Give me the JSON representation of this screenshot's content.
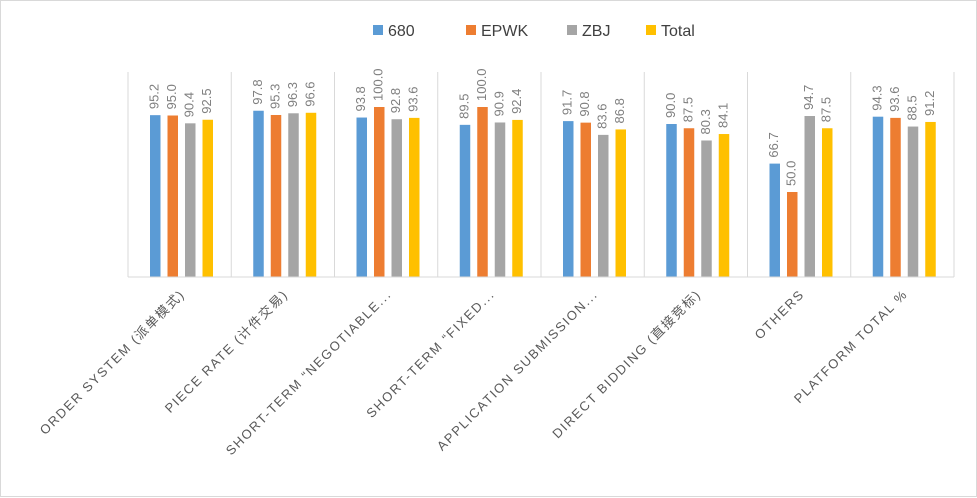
{
  "chart_data": {
    "type": "bar",
    "categories": [
      "ORDER SYSTEM (派单模式)",
      "PIECE RATE (计件交易)",
      "SHORT-TERM “NEGOTIABLE...",
      "SHORT-TERM “FIXED...",
      "APPLICATION SUBMISSION...",
      "DIRECT BIDDING (直接竞标)",
      "OTHERS",
      "PLATFORM TOTAL %"
    ],
    "series": [
      {
        "name": "680",
        "color": "#5b9bd5",
        "values": [
          95.2,
          97.8,
          93.8,
          89.5,
          91.7,
          90.0,
          66.7,
          94.3
        ]
      },
      {
        "name": "EPWK",
        "color": "#ed7d31",
        "values": [
          95.0,
          95.3,
          100.0,
          100.0,
          90.8,
          87.5,
          50.0,
          93.6
        ]
      },
      {
        "name": "ZBJ",
        "color": "#a5a5a5",
        "values": [
          90.4,
          96.3,
          92.8,
          90.9,
          83.6,
          80.3,
          94.7,
          88.5
        ]
      },
      {
        "name": "Total",
        "color": "#ffc000",
        "values": [
          92.5,
          96.6,
          93.6,
          92.4,
          86.8,
          84.1,
          87.5,
          91.2
        ]
      }
    ],
    "value_labels": [
      [
        "95.2",
        "97.8",
        "93.8",
        "89.5",
        "91.7",
        "90.0",
        "66.7",
        "94.3"
      ],
      [
        "95.0",
        "95.3",
        "100.0",
        "100.0",
        "90.8",
        "87.5",
        "50.0",
        "93.6"
      ],
      [
        "90.4",
        "96.3",
        "92.8",
        "90.9",
        "83.6",
        "80.3",
        "94.7",
        "88.5"
      ],
      [
        "92.5",
        "96.6",
        "93.6",
        "92.4",
        "86.8",
        "84.1",
        "87.5",
        "91.2"
      ]
    ],
    "ylim": [
      0,
      120
    ],
    "grid": false,
    "legend": "top-center",
    "title": "",
    "xlabel": "",
    "ylabel": ""
  }
}
